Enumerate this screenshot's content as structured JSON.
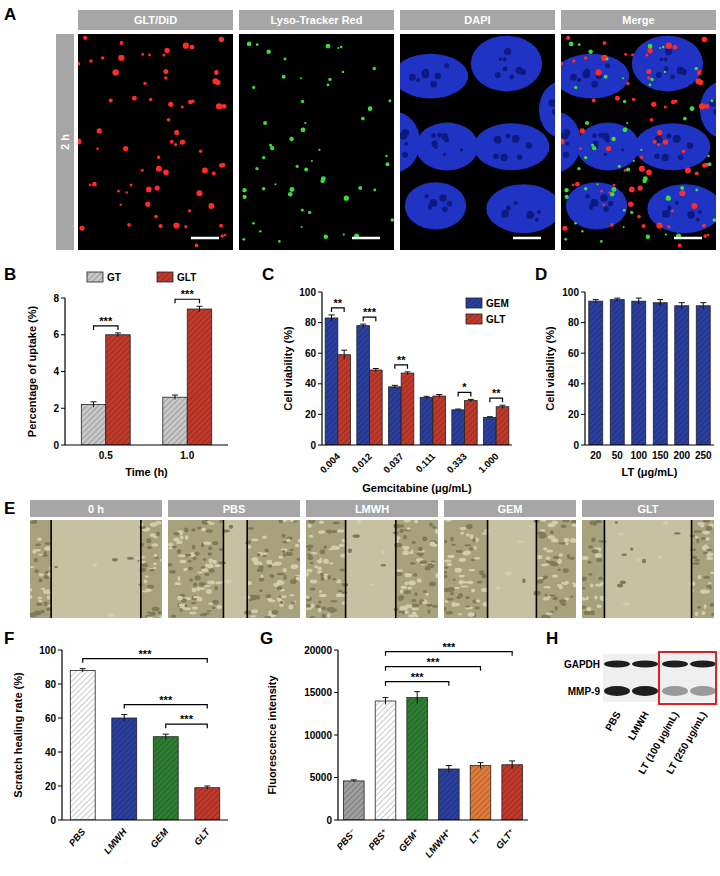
{
  "panel_a": {
    "panel_label": "A",
    "row_label": "2 h",
    "headers": [
      "GLT/DiD",
      "Lyso-Tracker Red",
      "DAPI",
      "Merge"
    ]
  },
  "chart_data": [
    {
      "type": "bar",
      "panel_label": "B",
      "y_label": "Percentage of uptake (%)",
      "x_label": "Time (h)",
      "categories": [
        "0.5",
        "1.0"
      ],
      "series": [
        {
          "name": "GT",
          "color": "#c8c8c8",
          "values": [
            2.2,
            2.6
          ],
          "errors": [
            0.15,
            0.12
          ]
        },
        {
          "name": "GLT",
          "color": "#c0392b",
          "values": [
            6.0,
            7.4
          ],
          "errors": [
            0.1,
            0.15
          ]
        }
      ],
      "ylim": [
        0,
        8
      ],
      "yticks": [
        0,
        2,
        4,
        6,
        8
      ],
      "legend": "top",
      "annotations": [
        {
          "category": 0,
          "text": "***"
        },
        {
          "category": 1,
          "text": "***"
        }
      ]
    },
    {
      "type": "bar",
      "panel_label": "C",
      "y_label": "Cell viability (%)",
      "x_label": "Gemcitabine (μg/mL)",
      "categories": [
        "0.004",
        "0.012",
        "0.037",
        "0.111",
        "0.333",
        "1.000"
      ],
      "series": [
        {
          "name": "GEM",
          "color": "#2a3f9e",
          "values": [
            83,
            78,
            38,
            31,
            23,
            18
          ],
          "errors": [
            2,
            1,
            1,
            0.8,
            0.5,
            0.5
          ]
        },
        {
          "name": "GLT",
          "color": "#c0392b",
          "values": [
            59,
            49,
            47,
            32,
            29,
            25
          ],
          "errors": [
            3,
            1,
            0.8,
            1,
            0.8,
            1
          ]
        }
      ],
      "ylim": [
        0,
        100
      ],
      "yticks": [
        0,
        20,
        40,
        60,
        80,
        100
      ],
      "legend": "upper right",
      "annotations": [
        {
          "category": 0,
          "text": "**"
        },
        {
          "category": 1,
          "text": "***"
        },
        {
          "category": 2,
          "text": "**"
        },
        {
          "category": 4,
          "text": "*"
        },
        {
          "category": 5,
          "text": "**"
        }
      ]
    },
    {
      "type": "bar",
      "panel_label": "D",
      "y_label": "Cell viability (%)",
      "x_label": "LT (μg/mL)",
      "categories": [
        "20",
        "50",
        "100",
        "150",
        "200",
        "250"
      ],
      "values": [
        94,
        95,
        94,
        93,
        91,
        91
      ],
      "errors": [
        1,
        1,
        2,
        2,
        2,
        2
      ],
      "color": "#2a3f9e",
      "ylim": [
        0,
        100
      ],
      "yticks": [
        0,
        20,
        40,
        60,
        80,
        100
      ]
    },
    {
      "type": "bar",
      "panel_label": "F",
      "y_label": "Scratch healing rate (%)",
      "categories": [
        "PBS",
        "LMWH",
        "GEM",
        "GLT"
      ],
      "values": [
        88,
        60,
        49,
        19
      ],
      "errors": [
        1,
        2,
        1.5,
        1
      ],
      "colors": [
        "#ffffff",
        "#2a3f9e",
        "#2e7d32",
        "#c0392b"
      ],
      "ylim": [
        0,
        100
      ],
      "yticks": [
        0,
        20,
        40,
        60,
        80,
        100
      ],
      "annotations": [
        {
          "from": 2,
          "to": 3,
          "text": "***"
        },
        {
          "from": 1,
          "to": 3,
          "text": "***"
        },
        {
          "from": 0,
          "to": 3,
          "text": "***"
        }
      ]
    },
    {
      "type": "bar",
      "panel_label": "G",
      "y_label": "Fluorescence intensity",
      "categories": [
        "PBS⁻",
        "PBS⁺",
        "GEM⁺",
        "LMWH⁺",
        "LT⁺",
        "GLT⁺"
      ],
      "values": [
        4600,
        14000,
        14400,
        6000,
        6400,
        6500
      ],
      "errors": [
        120,
        400,
        700,
        400,
        350,
        450
      ],
      "colors": [
        "#9e9e9e",
        "#ffffff",
        "#2e7d32",
        "#2a3f9e",
        "#e07b39",
        "#c0392b"
      ],
      "ylim": [
        0,
        20000
      ],
      "yticks": [
        0,
        5000,
        10000,
        15000,
        20000
      ],
      "annotations": [
        {
          "from": 1,
          "to": 3,
          "text": "***"
        },
        {
          "from": 1,
          "to": 4,
          "text": "***"
        },
        {
          "from": 1,
          "to": 5,
          "text": "***"
        }
      ]
    }
  ],
  "panel_e": {
    "panel_label": "E",
    "headers": [
      "0 h",
      "PBS",
      "LMWH",
      "GEM",
      "GLT"
    ]
  },
  "panel_h": {
    "panel_label": "H",
    "bands": [
      "GAPDH",
      "MMP-9"
    ],
    "lanes": [
      "PBS",
      "LMWH",
      "LT (100 μg/mL)",
      "LT (250 μg/mL)"
    ]
  }
}
